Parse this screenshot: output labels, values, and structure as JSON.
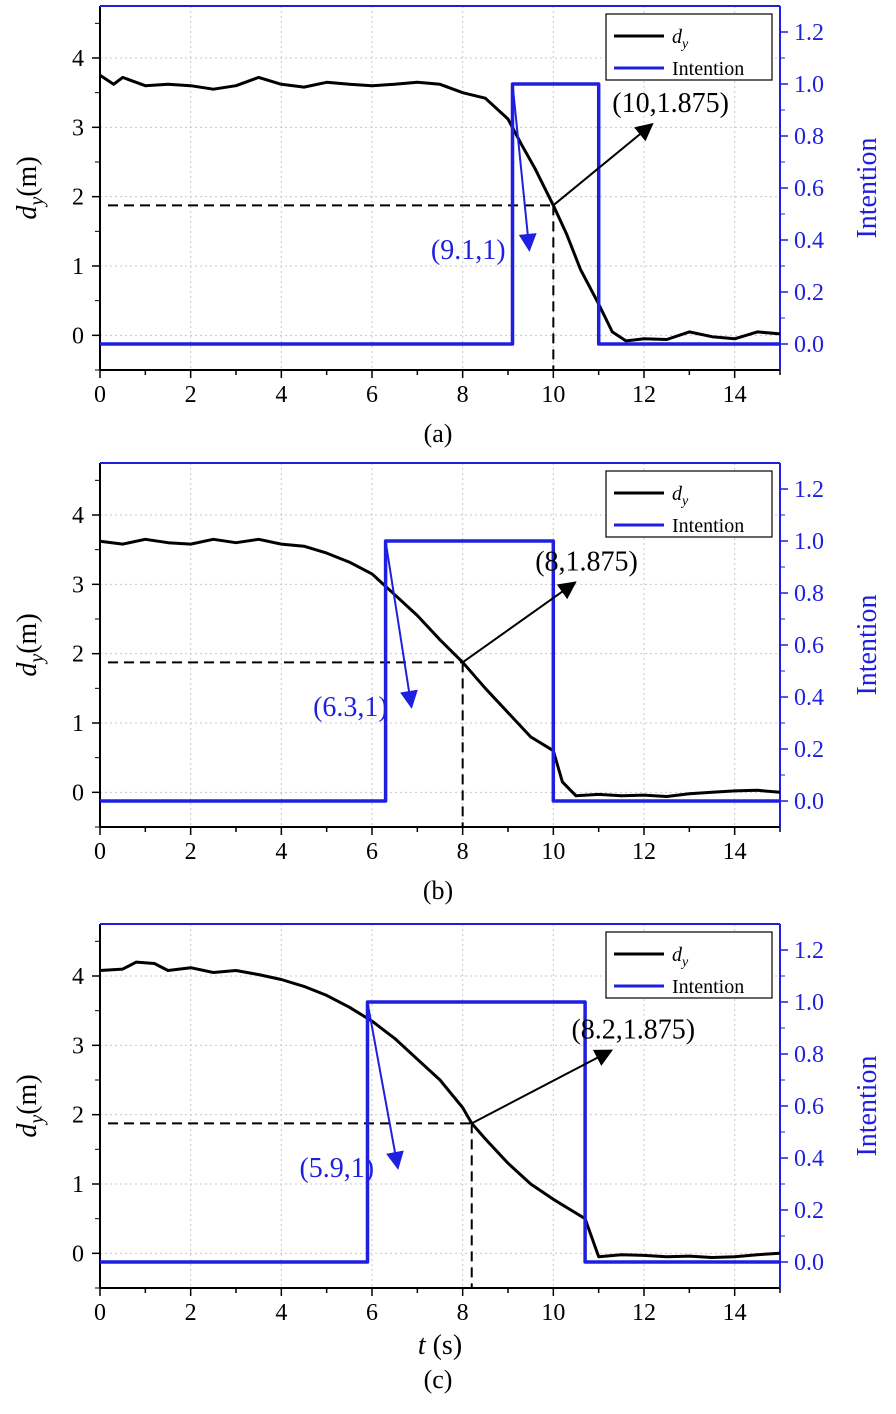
{
  "chart_data": [
    {
      "type": "line",
      "panel_label": "(a)",
      "x_ticks": [
        0,
        2,
        4,
        6,
        8,
        10,
        12,
        14
      ],
      "xlim": [
        0,
        15
      ],
      "ylim": [
        -0.5,
        4.75
      ],
      "y_ticks": [
        0,
        1,
        2,
        3,
        4
      ],
      "y2lim": [
        -0.1,
        1.3
      ],
      "y2_ticks": [
        "0.0",
        "0.2",
        "0.4",
        "0.6",
        "0.8",
        "1.0",
        "1.2"
      ],
      "ylabel_sym": "d",
      "ylabel_sub": "y",
      "ylabel_unit": "(m)",
      "y2label": "Intention",
      "legend": [
        {
          "sym": "d",
          "sub": "y",
          "color": "#000000"
        },
        {
          "label": "Intention",
          "color": "#1f1fe0"
        }
      ],
      "series": [
        {
          "name": "d_y",
          "color": "#000000",
          "x": [
            0,
            0.3,
            0.5,
            1,
            1.5,
            2,
            2.5,
            3,
            3.5,
            4,
            4.5,
            5,
            5.5,
            6,
            6.5,
            7,
            7.5,
            8,
            8.5,
            9,
            9.3,
            9.6,
            10,
            10.3,
            10.6,
            11,
            11.3,
            11.6,
            12,
            12.5,
            13,
            13.5,
            14,
            14.5,
            15
          ],
          "y": [
            3.75,
            3.62,
            3.72,
            3.6,
            3.62,
            3.6,
            3.55,
            3.6,
            3.72,
            3.62,
            3.58,
            3.65,
            3.62,
            3.6,
            3.62,
            3.65,
            3.62,
            3.5,
            3.42,
            3.12,
            2.75,
            2.4,
            1.875,
            1.45,
            0.95,
            0.45,
            0.05,
            -0.08,
            -0.05,
            -0.06,
            0.05,
            -0.02,
            -0.05,
            0.05,
            0.02
          ]
        },
        {
          "name": "Intention",
          "color": "#1f1fe0",
          "axis": "right",
          "x": [
            0,
            9.1,
            9.1,
            11.0,
            11.0,
            15
          ],
          "y": [
            0,
            0,
            1,
            1,
            0,
            0
          ]
        }
      ],
      "annotations": [
        {
          "text": "(9.1,1)",
          "color": "#1f1fe0",
          "point": [
            9.1,
            1
          ],
          "pointAxis": "right",
          "label_at": [
            7.3,
            1.1
          ]
        },
        {
          "text": "(10,1.875)",
          "color": "#000000",
          "point": [
            10,
            1.875
          ],
          "pointAxis": "left",
          "label_at": [
            11.3,
            3.22
          ]
        }
      ],
      "guide": {
        "x": 10,
        "y": 1.875
      }
    },
    {
      "type": "line",
      "panel_label": "(b)",
      "x_ticks": [
        0,
        2,
        4,
        6,
        8,
        10,
        12,
        14
      ],
      "xlim": [
        0,
        15
      ],
      "ylim": [
        -0.5,
        4.75
      ],
      "y_ticks": [
        0,
        1,
        2,
        3,
        4
      ],
      "y2lim": [
        -0.1,
        1.3
      ],
      "y2_ticks": [
        "0.0",
        "0.2",
        "0.4",
        "0.6",
        "0.8",
        "1.0",
        "1.2"
      ],
      "ylabel_sym": "d",
      "ylabel_sub": "y",
      "ylabel_unit": "(m)",
      "y2label": "Intention",
      "legend": [
        {
          "sym": "d",
          "sub": "y",
          "color": "#000000"
        },
        {
          "label": "Intention",
          "color": "#1f1fe0"
        }
      ],
      "series": [
        {
          "name": "d_y",
          "color": "#000000",
          "x": [
            0,
            0.5,
            1,
            1.5,
            2,
            2.5,
            3,
            3.5,
            4,
            4.5,
            5,
            5.5,
            6,
            6.5,
            7,
            7.5,
            8,
            8.5,
            9,
            9.5,
            10,
            10.2,
            10.5,
            11,
            11.5,
            12,
            12.5,
            13,
            13.5,
            14,
            14.5,
            15
          ],
          "y": [
            3.62,
            3.58,
            3.65,
            3.6,
            3.58,
            3.65,
            3.6,
            3.65,
            3.58,
            3.55,
            3.45,
            3.32,
            3.15,
            2.85,
            2.55,
            2.2,
            1.875,
            1.5,
            1.15,
            0.8,
            0.6,
            0.15,
            -0.05,
            -0.03,
            -0.05,
            -0.04,
            -0.06,
            -0.02,
            0.0,
            0.02,
            0.03,
            0.0
          ]
        },
        {
          "name": "Intention",
          "color": "#1f1fe0",
          "axis": "right",
          "x": [
            0,
            6.3,
            6.3,
            10.0,
            10.0,
            15
          ],
          "y": [
            0,
            0,
            1,
            1,
            0,
            0
          ]
        }
      ],
      "annotations": [
        {
          "text": "(6.3,1)",
          "color": "#1f1fe0",
          "point": [
            6.3,
            1
          ],
          "pointAxis": "right",
          "label_at": [
            4.7,
            1.1
          ]
        },
        {
          "text": "(8,1.875)",
          "color": "#000000",
          "point": [
            8,
            1.875
          ],
          "pointAxis": "left",
          "label_at": [
            9.6,
            3.2
          ]
        }
      ],
      "guide": {
        "x": 8,
        "y": 1.875
      }
    },
    {
      "type": "line",
      "panel_label": "(c)",
      "x_ticks": [
        0,
        2,
        4,
        6,
        8,
        10,
        12,
        14
      ],
      "xlim": [
        0,
        15
      ],
      "ylim": [
        -0.5,
        4.75
      ],
      "y_ticks": [
        0,
        1,
        2,
        3,
        4
      ],
      "y2lim": [
        -0.1,
        1.3
      ],
      "y2_ticks": [
        "0.0",
        "0.2",
        "0.4",
        "0.6",
        "0.8",
        "1.0",
        "1.2"
      ],
      "ylabel_sym": "d",
      "ylabel_sub": "y",
      "ylabel_unit": "(m)",
      "y2label": "Intention",
      "xlabel_sym": "t",
      "xlabel_unit": " (s)",
      "legend": [
        {
          "sym": "d",
          "sub": "y",
          "color": "#000000"
        },
        {
          "label": "Intention",
          "color": "#1f1fe0"
        }
      ],
      "series": [
        {
          "name": "d_y",
          "color": "#000000",
          "x": [
            0,
            0.5,
            0.8,
            1.2,
            1.5,
            2,
            2.5,
            3,
            3.5,
            4,
            4.5,
            5,
            5.5,
            6,
            6.5,
            7,
            7.5,
            8,
            8.2,
            8.5,
            9,
            9.5,
            10,
            10.5,
            10.7,
            11,
            11.5,
            12,
            12.5,
            13,
            13.5,
            14,
            14.5,
            15
          ],
          "y": [
            4.08,
            4.1,
            4.2,
            4.18,
            4.08,
            4.12,
            4.05,
            4.08,
            4.02,
            3.95,
            3.85,
            3.72,
            3.55,
            3.35,
            3.1,
            2.8,
            2.5,
            2.1,
            1.875,
            1.65,
            1.3,
            1.0,
            0.78,
            0.58,
            0.5,
            -0.05,
            -0.02,
            -0.03,
            -0.05,
            -0.04,
            -0.06,
            -0.05,
            -0.02,
            0.0
          ]
        },
        {
          "name": "Intention",
          "color": "#1f1fe0",
          "axis": "right",
          "x": [
            0,
            5.9,
            5.9,
            10.7,
            10.7,
            15
          ],
          "y": [
            0,
            0,
            1,
            1,
            0,
            0
          ]
        }
      ],
      "annotations": [
        {
          "text": "(5.9,1)",
          "color": "#1f1fe0",
          "point": [
            5.9,
            1
          ],
          "pointAxis": "right",
          "label_at": [
            4.4,
            1.1
          ]
        },
        {
          "text": "(8.2,1.875)",
          "color": "#000000",
          "point": [
            8.2,
            1.875
          ],
          "pointAxis": "left",
          "label_at": [
            10.4,
            3.1
          ]
        }
      ],
      "guide": {
        "x": 8.2,
        "y": 1.875
      }
    }
  ]
}
